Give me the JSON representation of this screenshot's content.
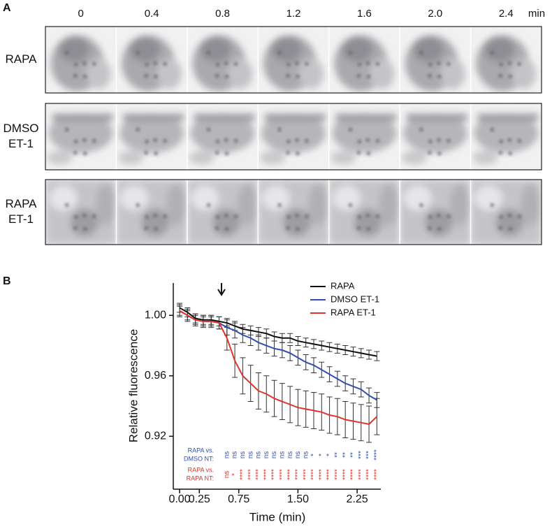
{
  "panel_a": {
    "label": "A",
    "unit": "min",
    "time_labels": [
      "0",
      "0.4",
      "0.8",
      "1.2",
      "1.6",
      "2.0",
      "2.4"
    ],
    "rows": [
      [
        "RAPA"
      ],
      [
        "DMSO",
        "ET-1"
      ],
      [
        "RAPA",
        "ET-1"
      ]
    ]
  },
  "chart_data": {
    "type": "line",
    "panel_label": "B",
    "y_label": "Relative fluorescence",
    "x_label": "Time (min)",
    "x": [
      0,
      0.1,
      0.2,
      0.3,
      0.4,
      0.5,
      0.6,
      0.7,
      0.8,
      0.9,
      1.0,
      1.1,
      1.2,
      1.3,
      1.4,
      1.5,
      1.6,
      1.7,
      1.8,
      1.9,
      2.0,
      2.1,
      2.2,
      2.3,
      2.4,
      2.5
    ],
    "xlim": [
      -0.08,
      2.55
    ],
    "ylim": [
      0.885,
      1.02
    ],
    "xticks": [
      {
        "value": 0,
        "label": "0.00"
      },
      0.25,
      0.75,
      {
        "value": 1.5,
        "label": "1.50"
      },
      2.25
    ],
    "yticks": [
      0.92,
      0.96,
      {
        "value": 1,
        "label": "1.00"
      }
    ],
    "legend": "upper right",
    "series": [
      {
        "name": "RAPA",
        "color": "#111111",
        "values": [
          1.005,
          1.002,
          0.998,
          0.997,
          0.997,
          0.996,
          0.995,
          0.993,
          0.991,
          0.99,
          0.989,
          0.988,
          0.986,
          0.985,
          0.985,
          0.983,
          0.982,
          0.981,
          0.98,
          0.979,
          0.978,
          0.977,
          0.976,
          0.975,
          0.974,
          0.973
        ],
        "errors": [
          0.003,
          0.003,
          0.003,
          0.003,
          0.003,
          0.003,
          0.003,
          0.003,
          0.003,
          0.003,
          0.003,
          0.003,
          0.003,
          0.003,
          0.003,
          0.003,
          0.003,
          0.003,
          0.003,
          0.003,
          0.003,
          0.003,
          0.003,
          0.003,
          0.003,
          0.003
        ]
      },
      {
        "name": "DMSO ET-1",
        "color": "#2f4fb0",
        "values": [
          1.003,
          1.0,
          0.997,
          0.996,
          0.996,
          0.995,
          0.992,
          0.99,
          0.987,
          0.985,
          0.982,
          0.98,
          0.978,
          0.977,
          0.975,
          0.972,
          0.969,
          0.967,
          0.964,
          0.961,
          0.958,
          0.955,
          0.953,
          0.951,
          0.947,
          0.944
        ],
        "errors": [
          0.004,
          0.004,
          0.004,
          0.004,
          0.004,
          0.004,
          0.005,
          0.005,
          0.005,
          0.005,
          0.005,
          0.005,
          0.005,
          0.005,
          0.005,
          0.005,
          0.005,
          0.005,
          0.005,
          0.005,
          0.005,
          0.005,
          0.005,
          0.005,
          0.005,
          0.005
        ]
      },
      {
        "name": "RAPA ET-1",
        "color": "#e0332a",
        "values": [
          1.003,
          1.0,
          0.997,
          0.996,
          0.996,
          0.995,
          0.985,
          0.97,
          0.96,
          0.955,
          0.95,
          0.948,
          0.945,
          0.943,
          0.941,
          0.939,
          0.938,
          0.937,
          0.936,
          0.934,
          0.933,
          0.931,
          0.93,
          0.929,
          0.928,
          0.933
        ],
        "errors": [
          0.003,
          0.003,
          0.003,
          0.003,
          0.003,
          0.004,
          0.008,
          0.011,
          0.012,
          0.012,
          0.012,
          0.012,
          0.012,
          0.012,
          0.012,
          0.012,
          0.012,
          0.012,
          0.012,
          0.012,
          0.012,
          0.012,
          0.012,
          0.012,
          0.012,
          0.012
        ]
      }
    ],
    "comparisons": [
      {
        "lines": [
          "RAPA vs.",
          "DMSO NT:"
        ],
        "color": "#2f4fb0",
        "symbols": [
          "ns",
          "ns",
          "ns",
          "ns",
          "ns",
          "ns",
          "ns",
          "ns",
          "ns",
          "ns",
          "ns",
          "*",
          "*",
          "*",
          "**",
          "**",
          "**",
          "***",
          "***",
          "****"
        ]
      },
      {
        "lines": [
          "RAPA vs.",
          "RAPA NT:"
        ],
        "color": "#e0332a",
        "symbols": [
          "ns",
          "*",
          "****",
          "****",
          "****",
          "****",
          "****",
          "****",
          "****",
          "****",
          "****",
          "****",
          "****",
          "****",
          "****",
          "****",
          "****",
          "****",
          "****",
          "****"
        ]
      }
    ]
  }
}
